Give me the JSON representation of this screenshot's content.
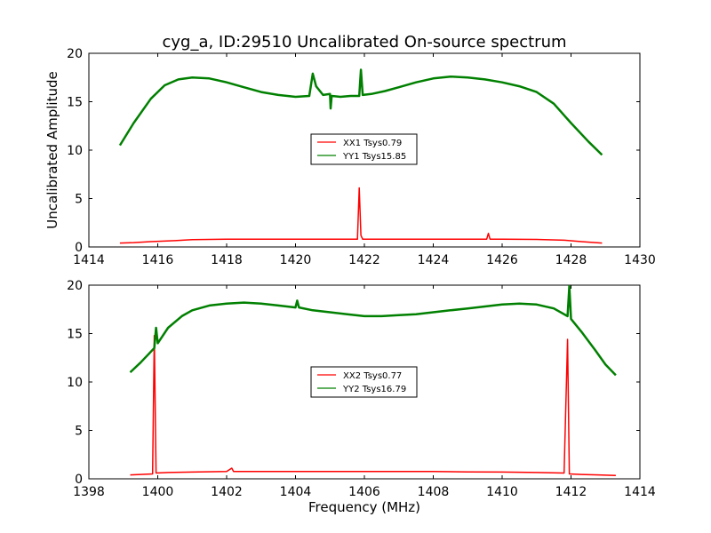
{
  "figure": {
    "title": "cyg_a, ID:29510 Uncalibrated On-source spectrum"
  },
  "chart_data": [
    {
      "type": "line",
      "title": "cyg_a, ID:29510 Uncalibrated On-source spectrum",
      "xlabel": "",
      "ylabel": "Uncalibrated Amplitude",
      "xlim": [
        1414,
        1430
      ],
      "ylim": [
        0,
        20
      ],
      "xticks": [
        "1414",
        "1416",
        "1418",
        "1420",
        "1422",
        "1424",
        "1426",
        "1428",
        "1430"
      ],
      "yticks": [
        "0",
        "5",
        "10",
        "15",
        "20"
      ],
      "grid": false,
      "legend": "center",
      "series": [
        {
          "name": "XX1 Tsys0.79",
          "color": "#ff0000",
          "x": [
            1414.9,
            1415.3,
            1415.8,
            1416.5,
            1417.0,
            1418.0,
            1419.0,
            1420.0,
            1421.0,
            1421.8,
            1421.85,
            1421.9,
            1421.95,
            1422.0,
            1423.0,
            1424.0,
            1425.0,
            1425.55,
            1425.6,
            1425.65,
            1426.0,
            1427.0,
            1427.8,
            1428.3,
            1428.9
          ],
          "y": [
            0.4,
            0.45,
            0.55,
            0.65,
            0.75,
            0.8,
            0.8,
            0.8,
            0.8,
            0.8,
            6.1,
            1.2,
            0.8,
            0.8,
            0.8,
            0.8,
            0.8,
            0.8,
            1.4,
            0.8,
            0.8,
            0.78,
            0.7,
            0.55,
            0.4
          ]
        },
        {
          "name": "YY1 Tsys15.85",
          "color": "#008000",
          "x": [
            1414.9,
            1415.3,
            1415.8,
            1416.2,
            1416.6,
            1417.0,
            1417.5,
            1418.0,
            1418.5,
            1419.0,
            1419.5,
            1420.0,
            1420.4,
            1420.5,
            1420.6,
            1420.8,
            1421.0,
            1421.02,
            1421.05,
            1421.3,
            1421.6,
            1421.85,
            1421.9,
            1421.95,
            1422.2,
            1422.6,
            1423.0,
            1423.5,
            1424.0,
            1424.5,
            1425.0,
            1425.5,
            1426.0,
            1426.5,
            1427.0,
            1427.5,
            1428.0,
            1428.5,
            1428.9
          ],
          "y": [
            10.5,
            12.8,
            15.3,
            16.7,
            17.3,
            17.5,
            17.4,
            17.0,
            16.5,
            16.0,
            15.7,
            15.5,
            15.6,
            17.9,
            16.6,
            15.7,
            15.8,
            14.3,
            15.6,
            15.5,
            15.6,
            15.6,
            18.3,
            15.7,
            15.8,
            16.1,
            16.5,
            17.0,
            17.4,
            17.6,
            17.5,
            17.3,
            17.0,
            16.6,
            16.0,
            14.8,
            12.8,
            10.9,
            9.5
          ]
        }
      ]
    },
    {
      "type": "line",
      "title": "",
      "xlabel": "Frequency (MHz)",
      "ylabel": "",
      "xlim": [
        1398,
        1414
      ],
      "ylim": [
        0,
        20
      ],
      "xticks": [
        "1398",
        "1400",
        "1402",
        "1404",
        "1406",
        "1408",
        "1410",
        "1412",
        "1414"
      ],
      "yticks": [
        "0",
        "5",
        "10",
        "15",
        "20"
      ],
      "grid": false,
      "legend": "center",
      "series": [
        {
          "name": "XX2 Tsys0.77",
          "color": "#ff0000",
          "x": [
            1399.2,
            1399.5,
            1399.85,
            1399.9,
            1399.95,
            1400.3,
            1401.0,
            1402.0,
            1402.15,
            1402.2,
            1402.3,
            1403.0,
            1404.0,
            1405.0,
            1406.0,
            1407.0,
            1408.0,
            1409.0,
            1410.0,
            1411.0,
            1411.8,
            1411.9,
            1411.95,
            1412.3,
            1412.8,
            1413.3
          ],
          "y": [
            0.4,
            0.45,
            0.5,
            14.8,
            0.6,
            0.65,
            0.7,
            0.75,
            1.1,
            0.75,
            0.75,
            0.75,
            0.75,
            0.75,
            0.75,
            0.75,
            0.75,
            0.72,
            0.7,
            0.65,
            0.6,
            14.4,
            0.5,
            0.45,
            0.4,
            0.35
          ]
        },
        {
          "name": "YY2 Tsys16.79",
          "color": "#008000",
          "x": [
            1399.2,
            1399.5,
            1399.9,
            1399.95,
            1400.0,
            1400.3,
            1400.7,
            1401.0,
            1401.5,
            1402.0,
            1402.5,
            1403.0,
            1403.5,
            1404.0,
            1404.05,
            1404.1,
            1404.5,
            1405.0,
            1405.5,
            1406.0,
            1406.5,
            1407.0,
            1407.5,
            1408.0,
            1408.5,
            1409.0,
            1409.5,
            1410.0,
            1410.5,
            1411.0,
            1411.5,
            1411.9,
            1411.95,
            1412.0,
            1412.3,
            1412.7,
            1413.0,
            1413.3
          ],
          "y": [
            11.0,
            12.0,
            13.5,
            15.6,
            14.0,
            15.6,
            16.8,
            17.4,
            17.9,
            18.1,
            18.2,
            18.1,
            17.9,
            17.7,
            18.4,
            17.7,
            17.4,
            17.2,
            17.0,
            16.8,
            16.8,
            16.9,
            17.0,
            17.2,
            17.4,
            17.6,
            17.8,
            18.0,
            18.1,
            18.0,
            17.6,
            16.8,
            19.9,
            16.5,
            15.2,
            13.3,
            11.8,
            10.7
          ]
        }
      ]
    }
  ]
}
